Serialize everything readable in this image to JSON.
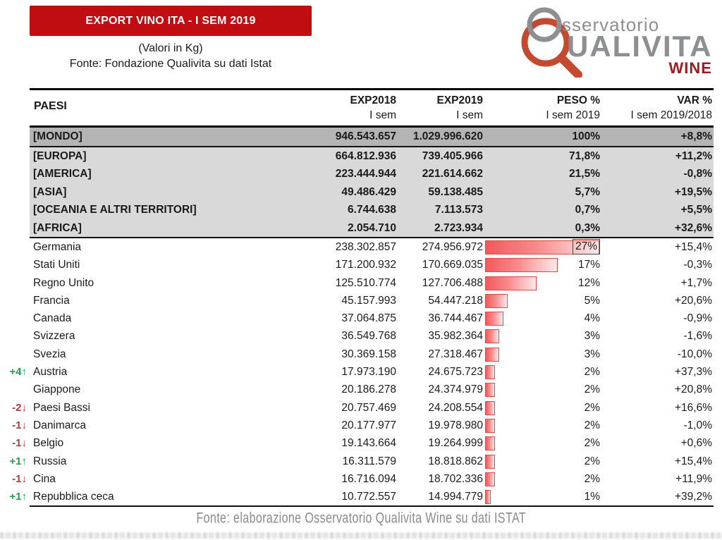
{
  "header": {
    "banner_title": "EXPORT VINO ITA - I SEM 2019",
    "subtitle1": "(Valori in Kg)",
    "subtitle2": "Fonte: Fondazione Qualivita su dati Istat"
  },
  "logo": {
    "line1": "sservatorio",
    "line2": "UALIVITA",
    "line3": "WINE",
    "gray": "#8d8f92",
    "red": "#c34a2e",
    "wine_red": "#9c1c24"
  },
  "table": {
    "columns": [
      {
        "line1": "PAESI",
        "line2": ""
      },
      {
        "line1": "EXP2018",
        "line2": "I sem"
      },
      {
        "line1": "EXP2019",
        "line2": "I sem"
      },
      {
        "line1": "PESO %",
        "line2": "I sem 2019"
      },
      {
        "line1": "VAR %",
        "line2": "I sem 2019/2018"
      }
    ],
    "world": {
      "name": "[MONDO]",
      "exp2018": "946.543.657",
      "exp2019": "1.029.996.620",
      "peso": "100%",
      "var": "+8,8%"
    },
    "continents": [
      {
        "name": "[EUROPA]",
        "exp2018": "664.812.936",
        "exp2019": "739.405.966",
        "peso": "71,8%",
        "var": "+11,2%"
      },
      {
        "name": "[AMERICA]",
        "exp2018": "223.444.944",
        "exp2019": "221.614.662",
        "peso": "21,5%",
        "var": "-0,8%"
      },
      {
        "name": "[ASIA]",
        "exp2018": "49.486.429",
        "exp2019": "59.138.485",
        "peso": "5,7%",
        "var": "+19,5%"
      },
      {
        "name": "[OCEANIA E ALTRI TERRITORI]",
        "exp2018": "6.744.638",
        "exp2019": "7.113.573",
        "peso": "0,7%",
        "var": "+5,5%"
      },
      {
        "name": "[AFRICA]",
        "exp2018": "2.054.710",
        "exp2019": "2.723.934",
        "peso": "0,3%",
        "var": "+32,6%"
      }
    ],
    "countries": [
      {
        "rank_change": "",
        "rank_dir": "",
        "name": "Germania",
        "exp2018": "238.302.857",
        "exp2019": "274.956.972",
        "peso": "27%",
        "peso_value": 27,
        "var": "+15,4%",
        "boxed": true
      },
      {
        "rank_change": "",
        "rank_dir": "",
        "name": "Stati Uniti",
        "exp2018": "171.200.932",
        "exp2019": "170.669.035",
        "peso": "17%",
        "peso_value": 17,
        "var": "-0,3%",
        "boxed": false
      },
      {
        "rank_change": "",
        "rank_dir": "",
        "name": "Regno Unito",
        "exp2018": "125.510.774",
        "exp2019": "127.706.488",
        "peso": "12%",
        "peso_value": 12,
        "var": "+1,7%",
        "boxed": false
      },
      {
        "rank_change": "",
        "rank_dir": "",
        "name": "Francia",
        "exp2018": "45.157.993",
        "exp2019": "54.447.218",
        "peso": "5%",
        "peso_value": 5,
        "var": "+20,6%",
        "boxed": false
      },
      {
        "rank_change": "",
        "rank_dir": "",
        "name": "Canada",
        "exp2018": "37.064.875",
        "exp2019": "36.744.467",
        "peso": "4%",
        "peso_value": 4,
        "var": "-0,9%",
        "boxed": false
      },
      {
        "rank_change": "",
        "rank_dir": "",
        "name": "Svizzera",
        "exp2018": "36.549.768",
        "exp2019": "35.982.364",
        "peso": "3%",
        "peso_value": 3,
        "var": "-1,6%",
        "boxed": false
      },
      {
        "rank_change": "",
        "rank_dir": "",
        "name": "Svezia",
        "exp2018": "30.369.158",
        "exp2019": "27.318.467",
        "peso": "3%",
        "peso_value": 3,
        "var": "-10,0%",
        "boxed": false
      },
      {
        "rank_change": "+4",
        "rank_dir": "up",
        "name": "Austria",
        "exp2018": "17.973.190",
        "exp2019": "24.675.723",
        "peso": "2%",
        "peso_value": 2,
        "var": "+37,3%",
        "boxed": false
      },
      {
        "rank_change": "",
        "rank_dir": "",
        "name": "Giappone",
        "exp2018": "20.186.278",
        "exp2019": "24.374.979",
        "peso": "2%",
        "peso_value": 2,
        "var": "+20,8%",
        "boxed": false
      },
      {
        "rank_change": "-2",
        "rank_dir": "down",
        "name": "Paesi Bassi",
        "exp2018": "20.757.469",
        "exp2019": "24.208.554",
        "peso": "2%",
        "peso_value": 2,
        "var": "+16,6%",
        "boxed": false
      },
      {
        "rank_change": "-1",
        "rank_dir": "down",
        "name": "Danimarca",
        "exp2018": "20.177.977",
        "exp2019": "19.978.980",
        "peso": "2%",
        "peso_value": 2,
        "var": "-1,0%",
        "boxed": false
      },
      {
        "rank_change": "-1",
        "rank_dir": "down",
        "name": "Belgio",
        "exp2018": "19.143.664",
        "exp2019": "19.264.999",
        "peso": "2%",
        "peso_value": 2,
        "var": "+0,6%",
        "boxed": false
      },
      {
        "rank_change": "+1",
        "rank_dir": "up",
        "name": "Russia",
        "exp2018": "16.311.579",
        "exp2019": "18.818.862",
        "peso": "2%",
        "peso_value": 2,
        "var": "+15,4%",
        "boxed": false
      },
      {
        "rank_change": "-1",
        "rank_dir": "down",
        "name": "Cina",
        "exp2018": "16.716.094",
        "exp2019": "18.702.336",
        "peso": "2%",
        "peso_value": 2,
        "var": "+11,9%",
        "boxed": false
      },
      {
        "rank_change": "+1",
        "rank_dir": "up",
        "name": "Repubblica ceca",
        "exp2018": "10.772.557",
        "exp2019": "14.994.779",
        "peso": "1%",
        "peso_value": 1,
        "var": "+39,2%",
        "boxed": false
      }
    ]
  },
  "footer": "Fonte: elaborazione Osservatorio Qualivita Wine su dati ISTAT",
  "colors": {
    "banner_red": "#c00d12",
    "world_row_bg": "#b4b4b4",
    "continent_row_bg": "#d9d9d9",
    "bar_border": "#e24649",
    "bar_gradient_start": "#f2595c",
    "bar_gradient_end": "#fde9ea",
    "rank_up_green": "#1fa04e",
    "rank_down_red": "#b23a3f"
  },
  "chart_data": {
    "type": "bar",
    "title": "PESO % I sem 2019 (quota export vino Italia per paese, in Kg)",
    "categories": [
      "Germania",
      "Stati Uniti",
      "Regno Unito",
      "Francia",
      "Canada",
      "Svizzera",
      "Svezia",
      "Austria",
      "Giappone",
      "Paesi Bassi",
      "Danimarca",
      "Belgio",
      "Russia",
      "Cina",
      "Repubblica ceca"
    ],
    "values": [
      27,
      17,
      12,
      5,
      4,
      3,
      3,
      2,
      2,
      2,
      2,
      2,
      2,
      2,
      1
    ],
    "xlabel": "PESO % I sem 2019",
    "ylabel": "Paese",
    "xlim": [
      0,
      30
    ],
    "orientation": "horizontal",
    "legend": false,
    "grid": false
  }
}
